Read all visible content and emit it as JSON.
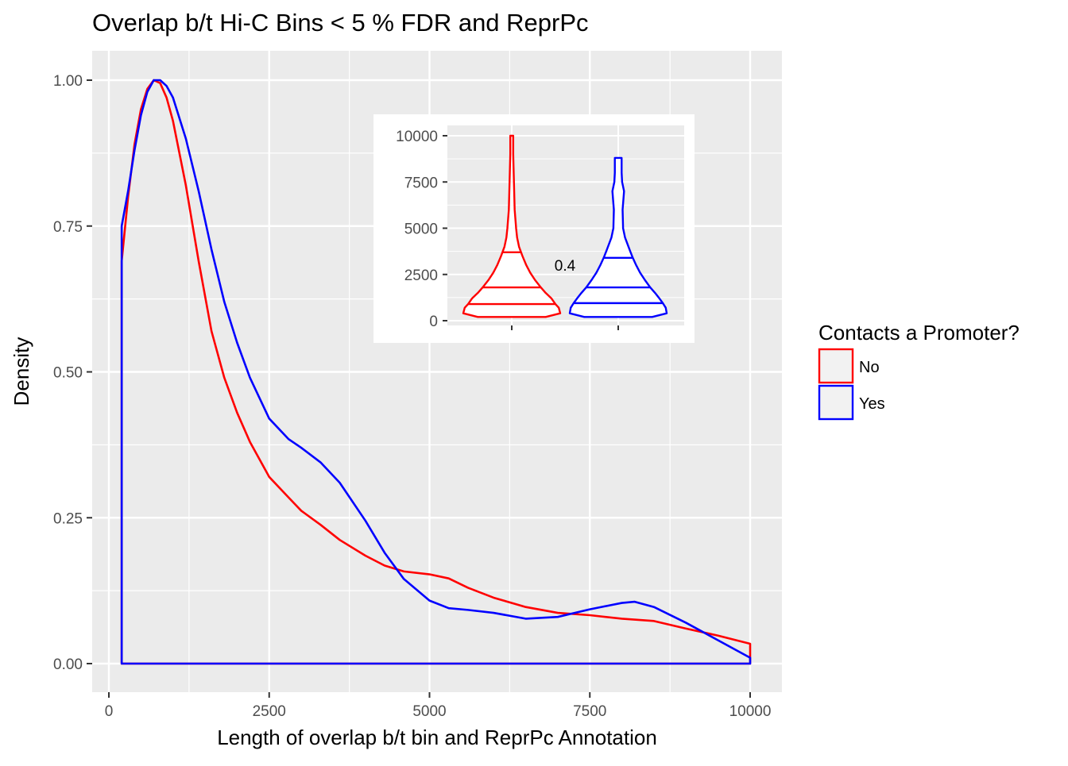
{
  "chart_data": [
    {
      "type": "area",
      "title": "Overlap b/t Hi-C Bins < 5 % FDR and ReprPc",
      "xlabel": "Length of overlap b/t bin and ReprPc Annotation",
      "ylabel": "Density",
      "xlim": [
        0,
        10000
      ],
      "ylim": [
        0,
        1
      ],
      "x_ticks": [
        0,
        2500,
        5000,
        7500,
        10000
      ],
      "x_tick_labels": [
        "0",
        "2500",
        "5000",
        "7500",
        "10000"
      ],
      "y_ticks": [
        0,
        0.25,
        0.5,
        0.75,
        1
      ],
      "y_tick_labels": [
        "0.00",
        "0.25",
        "0.50",
        "0.75",
        "1.00"
      ],
      "grid": true,
      "legend": {
        "title": "Contacts a Promoter?",
        "placement": "right",
        "entries": [
          {
            "label": "No",
            "color": "#ff0000"
          },
          {
            "label": "Yes",
            "color": "#0000ff"
          }
        ]
      },
      "series": [
        {
          "name": "No",
          "color": "#ff0000",
          "x": [
            200,
            300,
            400,
            500,
            600,
            700,
            800,
            900,
            1000,
            1200,
            1400,
            1600,
            1800,
            2000,
            2200,
            2500,
            2800,
            3000,
            3300,
            3600,
            4000,
            4300,
            4600,
            5000,
            5300,
            5600,
            6000,
            6500,
            7000,
            7500,
            8000,
            8500,
            9000,
            9500,
            10000
          ],
          "y": [
            0.69,
            0.8,
            0.89,
            0.95,
            0.985,
            1.0,
            0.995,
            0.97,
            0.93,
            0.82,
            0.69,
            0.57,
            0.49,
            0.43,
            0.38,
            0.32,
            0.285,
            0.262,
            0.238,
            0.212,
            0.185,
            0.168,
            0.158,
            0.153,
            0.146,
            0.13,
            0.113,
            0.097,
            0.087,
            0.083,
            0.077,
            0.073,
            0.06,
            0.048,
            0.034
          ]
        },
        {
          "name": "Yes",
          "color": "#0000ff",
          "x": [
            200,
            300,
            400,
            500,
            600,
            700,
            800,
            900,
            1000,
            1200,
            1400,
            1600,
            1800,
            2000,
            2200,
            2500,
            2800,
            3000,
            3300,
            3600,
            4000,
            4300,
            4600,
            5000,
            5300,
            5600,
            6000,
            6500,
            7000,
            7500,
            8000,
            8200,
            8500,
            9000,
            9500,
            10000
          ],
          "y": [
            0.75,
            0.81,
            0.88,
            0.94,
            0.98,
            1.0,
            1.0,
            0.99,
            0.97,
            0.9,
            0.81,
            0.71,
            0.62,
            0.55,
            0.49,
            0.42,
            0.385,
            0.37,
            0.345,
            0.31,
            0.245,
            0.19,
            0.145,
            0.108,
            0.095,
            0.092,
            0.087,
            0.077,
            0.08,
            0.093,
            0.104,
            0.106,
            0.097,
            0.07,
            0.04,
            0.01
          ]
        }
      ]
    },
    {
      "type": "violin",
      "annotation": "0.4",
      "ylim": [
        0,
        10000
      ],
      "y_ticks": [
        0,
        2500,
        5000,
        7500,
        10000
      ],
      "y_tick_labels": [
        "0",
        "2500",
        "5000",
        "7500",
        "10000"
      ],
      "grid": true,
      "series": [
        {
          "name": "No",
          "color": "#ff0000",
          "quantiles": [
            900,
            1800,
            3700
          ],
          "ymin": 200,
          "ymax": 10000,
          "profile_y": [
            200,
            400,
            700,
            900,
            1200,
            1500,
            1800,
            2200,
            2600,
            3000,
            3500,
            4000,
            4500,
            5000,
            6000,
            7000,
            8000,
            9000,
            10000
          ],
          "profile_width": [
            0.7,
            1.0,
            0.97,
            0.9,
            0.82,
            0.7,
            0.6,
            0.48,
            0.38,
            0.3,
            0.22,
            0.15,
            0.11,
            0.09,
            0.06,
            0.05,
            0.04,
            0.03,
            0.03
          ]
        },
        {
          "name": "Yes",
          "color": "#0000ff",
          "quantiles": [
            950,
            1800,
            3400
          ],
          "ymin": 200,
          "ymax": 8800,
          "profile_y": [
            200,
            400,
            700,
            950,
            1200,
            1500,
            1800,
            2200,
            2600,
            3000,
            3400,
            3800,
            4500,
            5000,
            6000,
            7000,
            7500,
            8000,
            8500,
            8800
          ],
          "profile_width": [
            0.7,
            1.0,
            0.98,
            0.92,
            0.85,
            0.76,
            0.66,
            0.55,
            0.45,
            0.37,
            0.3,
            0.24,
            0.14,
            0.1,
            0.09,
            0.12,
            0.08,
            0.07,
            0.07,
            0.07
          ]
        }
      ]
    }
  ]
}
